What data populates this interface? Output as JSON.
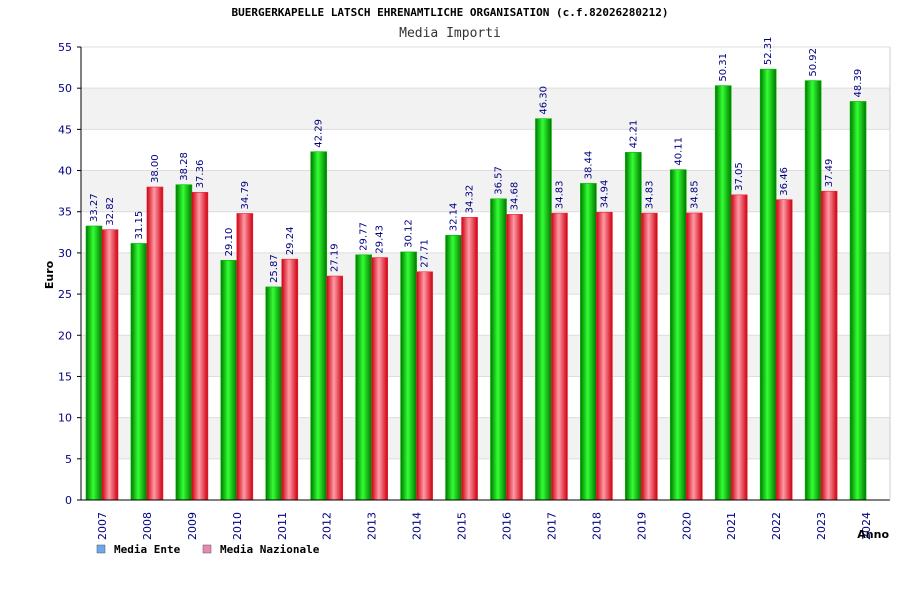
{
  "chart_data": {
    "type": "bar",
    "title": "BUERGERKAPELLE LATSCH EHRENAMTLICHE ORGANISATION (c.f.82026280212)",
    "subtitle": "Media Importi",
    "ylabel": "Euro",
    "xlabel": "Anno",
    "ylim": [
      0,
      55
    ],
    "yticks": [
      "0",
      "5",
      "10",
      "15",
      "20",
      "25",
      "30",
      "35",
      "40",
      "45",
      "50",
      "55"
    ],
    "grid": true,
    "legend_position": "bottom-left",
    "categories": [
      "2007",
      "2008",
      "2009",
      "2010",
      "2011",
      "2012",
      "2013",
      "2014",
      "2015",
      "2016",
      "2017",
      "2018",
      "2019",
      "2020",
      "2021",
      "2022",
      "2023",
      "2024"
    ],
    "series": [
      {
        "name": "Media Ente",
        "color": "#00bb00",
        "legend_color": "#6aa8f0",
        "values": [
          33.27,
          31.15,
          38.28,
          29.1,
          25.87,
          42.29,
          29.77,
          30.12,
          32.14,
          36.57,
          46.3,
          38.44,
          42.21,
          40.11,
          50.31,
          52.31,
          50.92,
          48.39
        ],
        "labels": [
          "33.27",
          "31.15",
          "38.28",
          "29.10",
          "25.87",
          "42.29",
          "29.77",
          "30.12",
          "32.14",
          "36.57",
          "46.30",
          "38.44",
          "42.21",
          "40.11",
          "50.31",
          "52.31",
          "50.92",
          "48.39"
        ]
      },
      {
        "name": "Media Nazionale",
        "color": "#ee2233",
        "legend_color": "#e889b4",
        "values": [
          32.82,
          38.0,
          37.36,
          34.79,
          29.24,
          27.19,
          29.43,
          27.71,
          34.32,
          34.68,
          34.83,
          34.94,
          34.83,
          34.85,
          37.05,
          36.46,
          37.49,
          null
        ],
        "labels": [
          "32.82",
          "38.00",
          "37.36",
          "34.79",
          "29.24",
          "27.19",
          "29.43",
          "27.71",
          "34.32",
          "34.68",
          "34.83",
          "34.94",
          "34.83",
          "34.85",
          "37.05",
          "36.46",
          "37.49",
          null
        ]
      }
    ]
  }
}
